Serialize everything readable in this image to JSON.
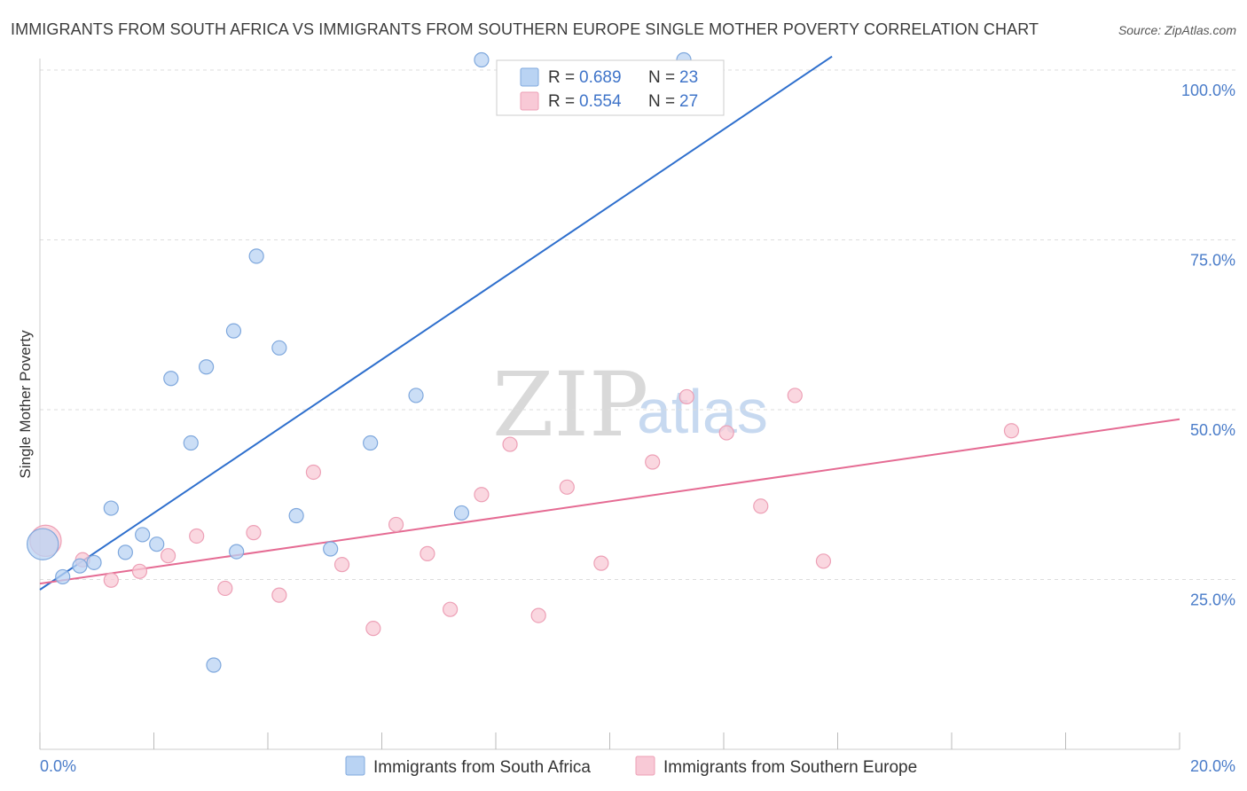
{
  "header": {
    "title": "IMMIGRANTS FROM SOUTH AFRICA VS IMMIGRANTS FROM SOUTHERN EUROPE SINGLE MOTHER POVERTY CORRELATION CHART",
    "source": "Source: ZipAtlas.com"
  },
  "watermark": {
    "zip": "ZIP",
    "atlas": "atlas"
  },
  "legend": {
    "rows": [
      {
        "r_label": "R =",
        "r_value": "0.689",
        "n_label": "N =",
        "n_value": "23"
      },
      {
        "r_label": "R =",
        "r_value": "0.554",
        "n_label": "N =",
        "n_value": "27"
      }
    ]
  },
  "bottom_legend": {
    "series1": "Immigrants from South Africa",
    "series2": "Immigrants from Southern Europe"
  },
  "colors": {
    "blue_fill": "#b9d3f3",
    "blue_stroke": "#7fa8dd",
    "blue_line": "#2e6fcd",
    "pink_fill": "#f8c9d6",
    "pink_stroke": "#eda0b6",
    "pink_line": "#e56b93",
    "tick_text": "#4a7cc9",
    "grid": "#dddddd"
  },
  "chart_data": {
    "type": "scatter",
    "title": "IMMIGRANTS FROM SOUTH AFRICA VS IMMIGRANTS FROM SOUTHERN EUROPE SINGLE MOTHER POVERTY CORRELATION CHART",
    "ylabel": "Single Mother Poverty",
    "xlabel": "",
    "xlim": [
      0,
      20
    ],
    "ylim": [
      0,
      100
    ],
    "x_ticks": [
      "0.0%",
      "20.0%"
    ],
    "y_ticks": [
      {
        "value": 25,
        "label": "25.0%"
      },
      {
        "value": 50,
        "label": "50.0%"
      },
      {
        "value": 75,
        "label": "75.0%"
      },
      {
        "value": 100,
        "label": "100.0%"
      }
    ],
    "grid": true,
    "series": [
      {
        "name": "Immigrants from South Africa",
        "color": "#b9d3f3",
        "r": 0.689,
        "n": 23,
        "trend": [
          [
            0,
            23.5
          ],
          [
            13.9,
            102
          ]
        ],
        "points": [
          [
            0.05,
            30.2,
            2.2
          ],
          [
            0.4,
            25.4,
            1
          ],
          [
            0.7,
            27,
            1
          ],
          [
            0.95,
            27.5,
            1
          ],
          [
            1.25,
            35.5,
            1
          ],
          [
            1.5,
            29,
            1
          ],
          [
            1.8,
            31.6,
            1
          ],
          [
            2.05,
            30.2,
            1
          ],
          [
            2.3,
            54.6,
            1
          ],
          [
            2.65,
            45.1,
            1
          ],
          [
            2.92,
            56.3,
            1
          ],
          [
            3.05,
            12.4,
            1
          ],
          [
            3.4,
            61.6,
            1
          ],
          [
            3.45,
            29.1,
            1
          ],
          [
            3.8,
            72.6,
            1
          ],
          [
            4.2,
            59.1,
            1
          ],
          [
            4.5,
            34.4,
            1
          ],
          [
            5.1,
            29.5,
            1
          ],
          [
            5.8,
            45.1,
            1
          ],
          [
            6.6,
            52.1,
            1
          ],
          [
            7.4,
            34.8,
            1
          ],
          [
            7.75,
            101.5,
            1
          ],
          [
            11.3,
            101.5,
            1
          ]
        ]
      },
      {
        "name": "Immigrants from Southern Europe",
        "color": "#f8c9d6",
        "r": 0.554,
        "n": 27,
        "trend": [
          [
            0,
            24.4
          ],
          [
            20,
            48.6
          ]
        ],
        "points": [
          [
            0.1,
            30.7,
            2.2
          ],
          [
            0.75,
            27.9,
            1
          ],
          [
            1.25,
            24.9,
            1
          ],
          [
            1.75,
            26.2,
            1
          ],
          [
            2.25,
            28.5,
            1
          ],
          [
            2.75,
            31.4,
            1
          ],
          [
            3.25,
            23.7,
            1
          ],
          [
            3.75,
            31.9,
            1
          ],
          [
            4.2,
            22.7,
            1
          ],
          [
            4.8,
            40.8,
            1
          ],
          [
            5.3,
            27.2,
            1
          ],
          [
            5.85,
            17.8,
            1
          ],
          [
            6.25,
            33.1,
            1
          ],
          [
            6.8,
            28.8,
            1
          ],
          [
            7.2,
            20.6,
            1
          ],
          [
            7.75,
            37.5,
            1
          ],
          [
            8.25,
            44.9,
            1
          ],
          [
            8.75,
            19.7,
            1
          ],
          [
            9.25,
            38.6,
            1
          ],
          [
            9.85,
            27.4,
            1
          ],
          [
            10.75,
            42.3,
            1
          ],
          [
            11.35,
            51.9,
            1
          ],
          [
            12.05,
            46.6,
            1
          ],
          [
            12.65,
            35.8,
            1
          ],
          [
            13.25,
            52.1,
            1
          ],
          [
            13.75,
            27.7,
            1
          ],
          [
            17.05,
            46.9,
            1
          ]
        ]
      }
    ]
  }
}
